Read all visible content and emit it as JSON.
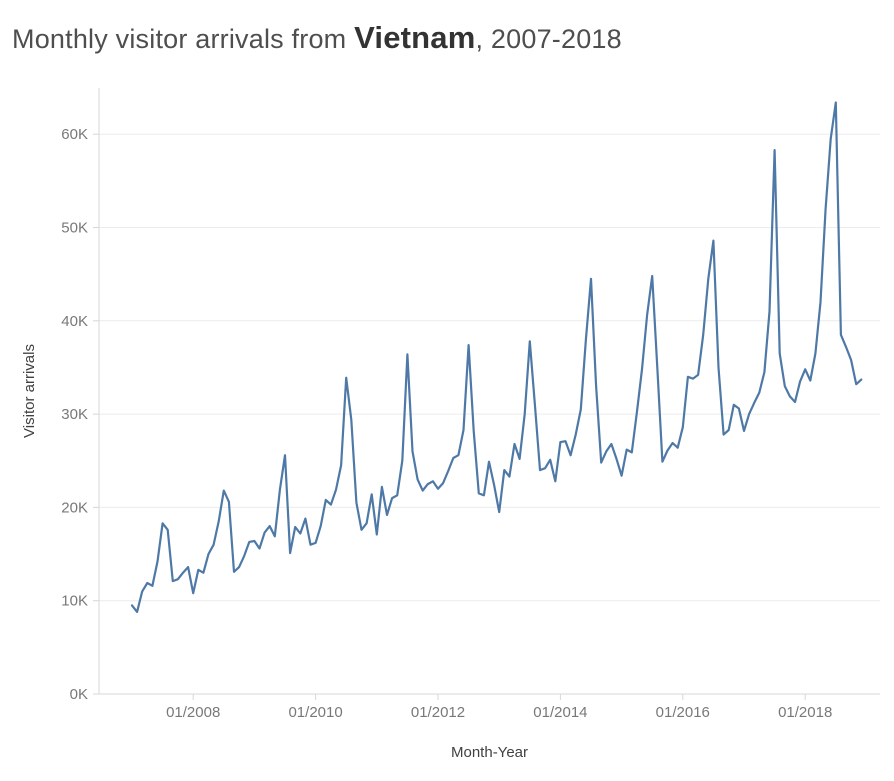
{
  "title": {
    "prefix": "Monthly visitor arrivals from ",
    "highlight": "Vietnam",
    "suffix": ", 2007-2018"
  },
  "chart_data": {
    "type": "line",
    "title": "Monthly visitor arrivals from Vietnam, 2007-2018",
    "xlabel": "Month-Year",
    "ylabel": "Visitor arrivals",
    "frequency": "monthly",
    "x_start": "01/2007",
    "x_end": "12/2018",
    "x_tick_labels": [
      "01/2008",
      "01/2010",
      "01/2012",
      "01/2014",
      "01/2016",
      "01/2018"
    ],
    "y_tick_labels": [
      "0K",
      "10K",
      "20K",
      "30K",
      "40K",
      "50K",
      "60K"
    ],
    "y_tick_values_thousands": [
      0,
      10,
      20,
      30,
      40,
      50,
      60
    ],
    "ylim_thousands": [
      0,
      65
    ],
    "grid": "horizontal",
    "legend": "none",
    "line_color": "#4e79a7",
    "series": [
      {
        "name": "Visitor arrivals (thousands)",
        "values_thousands": [
          9.5,
          8.8,
          11.0,
          11.9,
          11.6,
          14.2,
          18.3,
          17.6,
          12.1,
          12.3,
          13.0,
          13.6,
          10.8,
          13.3,
          13.0,
          15.0,
          16.0,
          18.5,
          21.8,
          20.6,
          13.1,
          13.6,
          14.8,
          16.3,
          16.4,
          15.6,
          17.3,
          18.0,
          16.9,
          21.9,
          25.6,
          15.1,
          17.9,
          17.2,
          18.8,
          16.0,
          16.2,
          18.0,
          20.8,
          20.3,
          21.9,
          24.5,
          33.9,
          29.4,
          20.5,
          17.6,
          18.3,
          21.4,
          17.1,
          22.2,
          19.2,
          21.0,
          21.3,
          25.0,
          36.4,
          26.0,
          23.0,
          21.8,
          22.5,
          22.8,
          22.0,
          22.6,
          23.9,
          25.3,
          25.6,
          28.3,
          37.4,
          28.2,
          21.5,
          21.3,
          24.9,
          22.4,
          19.5,
          24.0,
          23.3,
          26.8,
          25.2,
          30.0,
          37.8,
          31.0,
          24.0,
          24.2,
          25.1,
          22.8,
          27.0,
          27.1,
          25.6,
          27.8,
          30.5,
          38.0,
          44.5,
          33.0,
          24.8,
          26.0,
          26.8,
          25.2,
          23.4,
          26.2,
          25.9,
          30.2,
          34.8,
          40.6,
          44.8,
          35.0,
          24.9,
          26.1,
          26.9,
          26.4,
          28.6,
          34.0,
          33.8,
          34.2,
          38.5,
          44.5,
          48.6,
          35.0,
          27.8,
          28.3,
          31.0,
          30.6,
          28.2,
          30.0,
          31.2,
          32.3,
          34.5,
          41.0,
          58.3,
          36.5,
          33.0,
          31.9,
          31.3,
          33.5,
          34.8,
          33.6,
          36.5,
          42.0,
          52.0,
          59.5,
          63.4,
          38.5,
          37.2,
          35.8,
          33.2,
          33.7
        ]
      }
    ]
  },
  "colors": {
    "line": "#4e79a7",
    "gridline": "#ececec",
    "axis_line": "#d7d7d7",
    "tick_text": "#787878",
    "axis_title_text": "#414141",
    "title_text": "#4e4e4e",
    "title_highlight_text": "#333333",
    "background": "#ffffff"
  }
}
